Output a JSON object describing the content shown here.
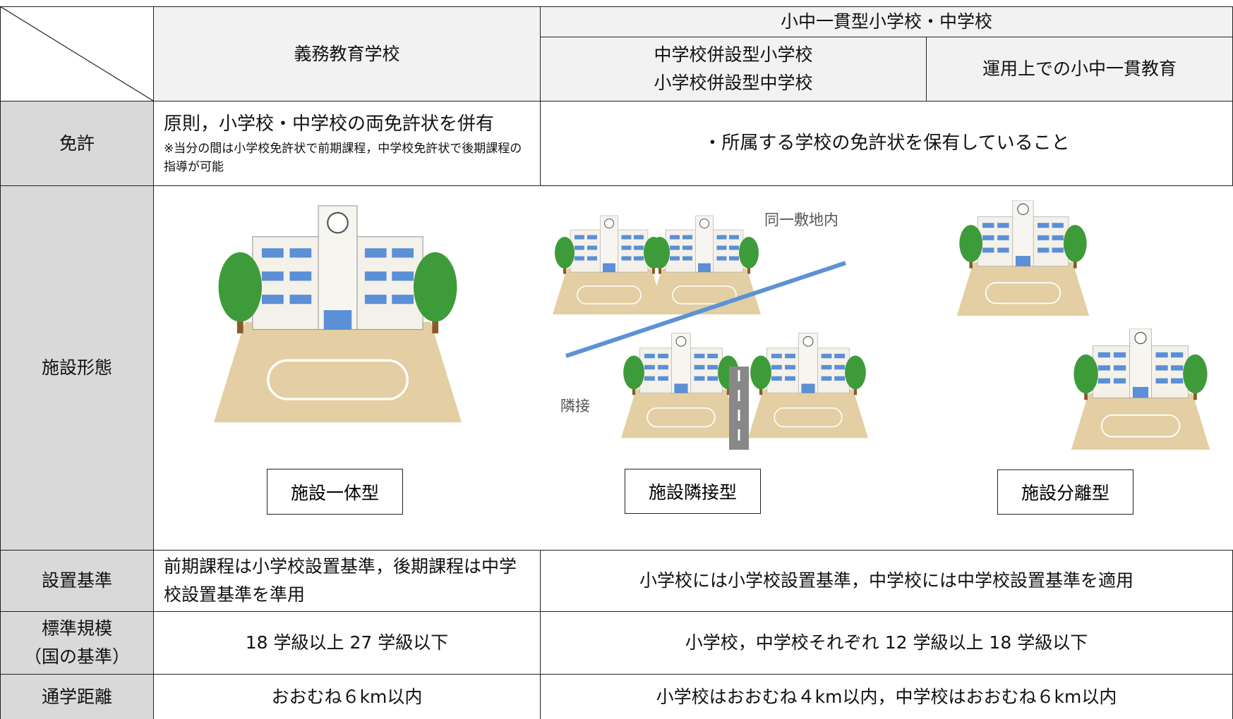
{
  "header": {
    "group": "小中一貫型小学校・中学校",
    "col1": "義務教育学校",
    "col2_lines": [
      "中学校併設型小学校",
      "小学校併設型中学校"
    ],
    "col3": "運用上での小中一貫教育"
  },
  "rows": [
    {
      "label": "免許",
      "col1_main": "原則，小学校・中学校の両免許状を併有",
      "col1_note": "※当分の間は小学校免許状で前期課程，中学校免許状で後期課程の指導が可能",
      "other": "・所属する学校の免許状を保有していること"
    },
    {
      "label": "施設形態",
      "types": [
        "施設一体型",
        "施設隣接型",
        "施設分離型"
      ],
      "same_site": "同一敷地内",
      "adjacent": "隣接"
    },
    {
      "label": "設置基準",
      "col1": "前期課程は小学校設置基準，後期課程は中学校設置基準を準用",
      "other": "小学校には小学校設置基準，中学校には中学校設置基準を適用"
    },
    {
      "label_lines": [
        "標準規模",
        "（国の基準）"
      ],
      "col1": "18 学級以上 27 学級以下",
      "other": "小学校，中学校それぞれ 12 学級以上 18 学級以下"
    },
    {
      "label": "通学距離",
      "col1": "おおむね６km以内",
      "other": "小学校はおおむね４km以内，中学校はおおむね６km以内"
    }
  ]
}
